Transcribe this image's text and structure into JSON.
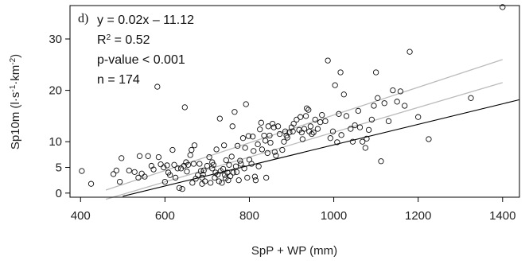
{
  "chart_data": {
    "type": "scatter",
    "panel_label": "d)",
    "xlabel": "SpP + WP (mm)",
    "ylabel_main": "Sp10m (l·s",
    "ylabel_sup1": "-1",
    "ylabel_mid": "·km",
    "ylabel_sup2": "-2",
    "ylabel_end": ")",
    "xlim": [
      375,
      1440
    ],
    "ylim": [
      -0.8,
      36.5
    ],
    "x_ticks": [
      400,
      600,
      800,
      1000,
      1200,
      1400
    ],
    "y_ticks": [
      0,
      5,
      10,
      20,
      30
    ],
    "grid": false,
    "annotations": {
      "equation": "y = 0.02x – 11.12",
      "r2_prefix": "R",
      "r2_sup": "2",
      "r2_rest": " = 0.52",
      "pvalue": "p-value < 0.001",
      "n": "n = 174"
    },
    "regression": {
      "slope": 0.02,
      "intercept": -11.12,
      "color": "#000000"
    },
    "confidence_band": {
      "lower_end_x1400": 21.5,
      "upper_end_x1400": 26.0,
      "lower_start_x460": -1.2,
      "upper_start_x460": 0.6,
      "color": "#bbbbbb"
    },
    "points": [
      [
        403,
        4.3
      ],
      [
        425,
        1.8
      ],
      [
        478,
        3.7
      ],
      [
        485,
        4.4
      ],
      [
        493,
        2.2
      ],
      [
        497,
        6.8
      ],
      [
        515,
        4.4
      ],
      [
        528,
        4.1
      ],
      [
        537,
        3.0
      ],
      [
        540,
        7.2
      ],
      [
        545,
        3.8
      ],
      [
        552,
        3.2
      ],
      [
        560,
        7.2
      ],
      [
        568,
        5.3
      ],
      [
        573,
        4.6
      ],
      [
        582,
        20.7
      ],
      [
        585,
        7.0
      ],
      [
        590,
        5.6
      ],
      [
        597,
        5.0
      ],
      [
        600,
        2.2
      ],
      [
        605,
        5.4
      ],
      [
        608,
        4.0
      ],
      [
        612,
        3.5
      ],
      [
        618,
        8.4
      ],
      [
        622,
        5.5
      ],
      [
        625,
        3.0
      ],
      [
        630,
        4.8
      ],
      [
        634,
        1.0
      ],
      [
        638,
        4.8
      ],
      [
        641,
        0.8
      ],
      [
        645,
        5.3
      ],
      [
        647,
        16.7
      ],
      [
        650,
        6.0
      ],
      [
        652,
        4.2
      ],
      [
        655,
        5.5
      ],
      [
        660,
        7.4
      ],
      [
        663,
        8.4
      ],
      [
        665,
        2.0
      ],
      [
        668,
        5.7
      ],
      [
        670,
        9.3
      ],
      [
        673,
        2.8
      ],
      [
        678,
        3.5
      ],
      [
        682,
        5.7
      ],
      [
        685,
        4.3
      ],
      [
        688,
        3.0
      ],
      [
        690,
        3.6
      ],
      [
        692,
        4.4
      ],
      [
        695,
        2.3
      ],
      [
        700,
        5.3
      ],
      [
        705,
        7.0
      ],
      [
        708,
        2.0
      ],
      [
        712,
        6.0
      ],
      [
        715,
        5.5
      ],
      [
        718,
        3.0
      ],
      [
        720,
        4.0
      ],
      [
        722,
        8.5
      ],
      [
        725,
        3.6
      ],
      [
        728,
        2.3
      ],
      [
        730,
        14.5
      ],
      [
        732,
        4.3
      ],
      [
        735,
        2.0
      ],
      [
        738,
        4.7
      ],
      [
        740,
        9.3
      ],
      [
        742,
        3.5
      ],
      [
        745,
        6.4
      ],
      [
        748,
        4.0
      ],
      [
        750,
        2.5
      ],
      [
        752,
        5.5
      ],
      [
        755,
        3.3
      ],
      [
        758,
        7.1
      ],
      [
        760,
        13.0
      ],
      [
        762,
        4.0
      ],
      [
        765,
        15.8
      ],
      [
        768,
        5.2
      ],
      [
        770,
        4.1
      ],
      [
        772,
        9.2
      ],
      [
        775,
        2.5
      ],
      [
        778,
        6.3
      ],
      [
        780,
        5.7
      ],
      [
        785,
        10.7
      ],
      [
        788,
        4.8
      ],
      [
        790,
        8.8
      ],
      [
        792,
        17.3
      ],
      [
        795,
        3.0
      ],
      [
        798,
        11.1
      ],
      [
        800,
        6.5
      ],
      [
        805,
        5.7
      ],
      [
        808,
        11.0
      ],
      [
        810,
        8.2
      ],
      [
        813,
        3.2
      ],
      [
        815,
        2.5
      ],
      [
        820,
        9.5
      ],
      [
        822,
        5.2
      ],
      [
        825,
        12.4
      ],
      [
        828,
        13.7
      ],
      [
        830,
        8.5
      ],
      [
        835,
        11.2
      ],
      [
        838,
        10.2
      ],
      [
        840,
        3.0
      ],
      [
        843,
        7.8
      ],
      [
        845,
        13.0
      ],
      [
        848,
        11.2
      ],
      [
        850,
        9.8
      ],
      [
        855,
        13.5
      ],
      [
        858,
        12.8
      ],
      [
        860,
        8.0
      ],
      [
        863,
        7.3
      ],
      [
        868,
        13.0
      ],
      [
        872,
        11.5
      ],
      [
        878,
        8.4
      ],
      [
        882,
        10.0
      ],
      [
        885,
        12.0
      ],
      [
        888,
        11.2
      ],
      [
        890,
        10.8
      ],
      [
        895,
        11.8
      ],
      [
        900,
        12.8
      ],
      [
        903,
        12.0
      ],
      [
        905,
        13.5
      ],
      [
        912,
        14.3
      ],
      [
        918,
        12.3
      ],
      [
        921,
        14.8
      ],
      [
        924,
        11.8
      ],
      [
        926,
        10.5
      ],
      [
        930,
        12.5
      ],
      [
        934,
        15.0
      ],
      [
        936,
        16.5
      ],
      [
        940,
        16.2
      ],
      [
        942,
        12.0
      ],
      [
        945,
        13.0
      ],
      [
        948,
        11.5
      ],
      [
        952,
        11.8
      ],
      [
        956,
        14.3
      ],
      [
        962,
        12.5
      ],
      [
        968,
        13.8
      ],
      [
        972,
        15.2
      ],
      [
        980,
        14.0
      ],
      [
        986,
        25.8
      ],
      [
        992,
        10.7
      ],
      [
        998,
        12.0
      ],
      [
        1003,
        21.0
      ],
      [
        1008,
        9.9
      ],
      [
        1012,
        15.4
      ],
      [
        1016,
        23.5
      ],
      [
        1018,
        11.3
      ],
      [
        1024,
        19.2
      ],
      [
        1030,
        15.0
      ],
      [
        1040,
        12.5
      ],
      [
        1045,
        10.0
      ],
      [
        1050,
        13.2
      ],
      [
        1058,
        16.0
      ],
      [
        1062,
        12.8
      ],
      [
        1068,
        10.0
      ],
      [
        1075,
        8.8
      ],
      [
        1078,
        10.6
      ],
      [
        1083,
        12.3
      ],
      [
        1090,
        14.3
      ],
      [
        1095,
        17.0
      ],
      [
        1100,
        23.5
      ],
      [
        1104,
        18.5
      ],
      [
        1112,
        6.2
      ],
      [
        1120,
        17.5
      ],
      [
        1130,
        14.0
      ],
      [
        1140,
        20.0
      ],
      [
        1150,
        17.8
      ],
      [
        1158,
        19.8
      ],
      [
        1168,
        17.0
      ],
      [
        1180,
        27.5
      ],
      [
        1200,
        14.8
      ],
      [
        1225,
        10.5
      ],
      [
        1325,
        18.5
      ],
      [
        1400,
        36.2
      ],
      [
        688,
        1.8
      ],
      [
        712,
        4.8
      ],
      [
        744,
        2.9
      ]
    ]
  }
}
